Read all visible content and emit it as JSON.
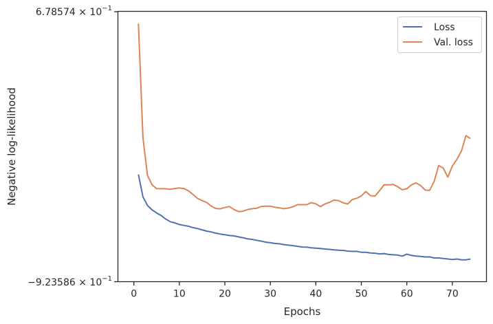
{
  "chart_data": {
    "type": "line",
    "title": "",
    "xlabel": "Epochs",
    "ylabel": "Negative log-likelihood",
    "xlim": [
      -3.5,
      77.5
    ],
    "ylim": [
      -0.923586,
      0.678574
    ],
    "xticks": [
      0,
      10,
      20,
      30,
      40,
      50,
      60,
      70
    ],
    "xtick_labels": [
      "0",
      "10",
      "20",
      "30",
      "40",
      "50",
      "60",
      "70"
    ],
    "ytick_labels": {
      "top": "6.78574",
      "bottom": "−9.23586",
      "base": "10",
      "exponent": "−1"
    },
    "grid": false,
    "legend": "top-right",
    "colors": {
      "Loss": "#4c72b0",
      "Val. loss": "#dd8452",
      "axis": "#262626"
    },
    "x": [
      1,
      2,
      3,
      4,
      5,
      6,
      7,
      8,
      9,
      10,
      11,
      12,
      13,
      14,
      15,
      16,
      17,
      18,
      19,
      20,
      21,
      22,
      23,
      24,
      25,
      26,
      27,
      28,
      29,
      30,
      31,
      32,
      33,
      34,
      35,
      36,
      37,
      38,
      39,
      40,
      41,
      42,
      43,
      44,
      45,
      46,
      47,
      48,
      49,
      50,
      51,
      52,
      53,
      54,
      55,
      56,
      57,
      58,
      59,
      60,
      61,
      62,
      63,
      64,
      65,
      66,
      67,
      68,
      69,
      70,
      71,
      72,
      73,
      74
    ],
    "series": [
      {
        "name": "Loss",
        "values": [
          -0.288,
          -0.421,
          -0.472,
          -0.498,
          -0.516,
          -0.532,
          -0.552,
          -0.568,
          -0.575,
          -0.585,
          -0.59,
          -0.595,
          -0.603,
          -0.609,
          -0.616,
          -0.624,
          -0.629,
          -0.636,
          -0.641,
          -0.645,
          -0.65,
          -0.652,
          -0.658,
          -0.663,
          -0.67,
          -0.673,
          -0.678,
          -0.683,
          -0.689,
          -0.693,
          -0.697,
          -0.699,
          -0.704,
          -0.707,
          -0.71,
          -0.714,
          -0.718,
          -0.719,
          -0.723,
          -0.725,
          -0.727,
          -0.73,
          -0.732,
          -0.735,
          -0.737,
          -0.738,
          -0.742,
          -0.744,
          -0.744,
          -0.749,
          -0.749,
          -0.753,
          -0.755,
          -0.759,
          -0.757,
          -0.762,
          -0.764,
          -0.766,
          -0.772,
          -0.76,
          -0.768,
          -0.772,
          -0.774,
          -0.777,
          -0.777,
          -0.783,
          -0.783,
          -0.786,
          -0.789,
          -0.792,
          -0.789,
          -0.794,
          -0.794,
          -0.789
        ]
      },
      {
        "name": "Val. loss",
        "values": [
          0.606,
          -0.071,
          -0.294,
          -0.349,
          -0.372,
          -0.373,
          -0.373,
          -0.376,
          -0.371,
          -0.368,
          -0.372,
          -0.385,
          -0.407,
          -0.43,
          -0.443,
          -0.454,
          -0.475,
          -0.49,
          -0.492,
          -0.484,
          -0.478,
          -0.496,
          -0.508,
          -0.506,
          -0.496,
          -0.491,
          -0.488,
          -0.478,
          -0.476,
          -0.476,
          -0.482,
          -0.486,
          -0.491,
          -0.487,
          -0.479,
          -0.467,
          -0.467,
          -0.467,
          -0.455,
          -0.462,
          -0.479,
          -0.463,
          -0.453,
          -0.44,
          -0.443,
          -0.456,
          -0.463,
          -0.437,
          -0.429,
          -0.415,
          -0.389,
          -0.414,
          -0.416,
          -0.384,
          -0.349,
          -0.35,
          -0.347,
          -0.361,
          -0.379,
          -0.373,
          -0.35,
          -0.338,
          -0.353,
          -0.38,
          -0.382,
          -0.33,
          -0.235,
          -0.25,
          -0.304,
          -0.238,
          -0.199,
          -0.149,
          -0.058,
          -0.076
        ]
      }
    ]
  }
}
